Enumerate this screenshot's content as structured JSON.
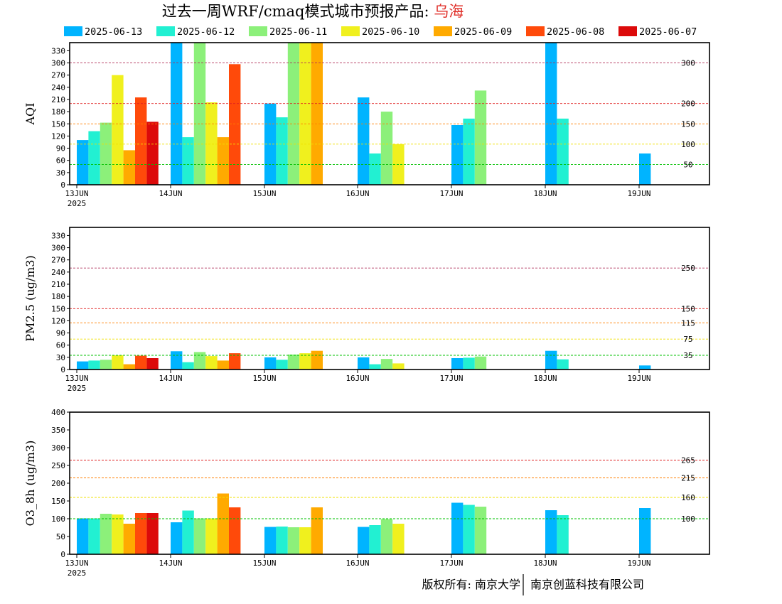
{
  "title": {
    "main": "过去一周WRF/cmaq模式城市预报产品: ",
    "city": "乌海"
  },
  "legend": [
    {
      "label": "2025-06-13",
      "color": "#00b4ff"
    },
    {
      "label": "2025-06-12",
      "color": "#22f0d2"
    },
    {
      "label": "2025-06-11",
      "color": "#8cf07a"
    },
    {
      "label": "2025-06-10",
      "color": "#f0f01e"
    },
    {
      "label": "2025-06-09",
      "color": "#ffaa00"
    },
    {
      "label": "2025-06-08",
      "color": "#ff4a0a"
    },
    {
      "label": "2025-06-07",
      "color": "#dc0a0a"
    }
  ],
  "footer": {
    "left": "版权所有: 南京大学",
    "right": "南京创蓝科技有限公司"
  },
  "chart_data": [
    {
      "type": "bar",
      "ylabel": "AQI",
      "ylim": [
        0,
        350
      ],
      "yticks": [
        0,
        30,
        60,
        90,
        120,
        150,
        180,
        210,
        240,
        270,
        300,
        330
      ],
      "categories": [
        "13JUN",
        "14JUN",
        "15JUN",
        "16JUN",
        "17JUN",
        "18JUN",
        "19JUN"
      ],
      "year_label": "2025",
      "thresholds": [
        {
          "value": 300,
          "label": "300",
          "color": "#b0305a"
        },
        {
          "value": 200,
          "label": "200",
          "color": "#e02020"
        },
        {
          "value": 150,
          "label": "150",
          "color": "#ff8000"
        },
        {
          "value": 100,
          "label": "100",
          "color": "#f0e000"
        },
        {
          "value": 50,
          "label": "50",
          "color": "#00c000"
        }
      ],
      "series": [
        {
          "name": "2025-06-13",
          "values": [
            110,
            350,
            200,
            215,
            147,
            350,
            77
          ]
        },
        {
          "name": "2025-06-12",
          "values": [
            132,
            117,
            166,
            77,
            163,
            163,
            null
          ]
        },
        {
          "name": "2025-06-11",
          "values": [
            153,
            350,
            350,
            180,
            232,
            null,
            null
          ]
        },
        {
          "name": "2025-06-10",
          "values": [
            270,
            203,
            350,
            100,
            null,
            null,
            null
          ]
        },
        {
          "name": "2025-06-09",
          "values": [
            85,
            117,
            350,
            null,
            null,
            null,
            null
          ]
        },
        {
          "name": "2025-06-08",
          "values": [
            215,
            297,
            null,
            null,
            null,
            null,
            null
          ]
        },
        {
          "name": "2025-06-07",
          "values": [
            155,
            null,
            null,
            null,
            null,
            null,
            null
          ]
        }
      ]
    },
    {
      "type": "bar",
      "ylabel": "PM2.5 (ug/m3)",
      "ylim": [
        0,
        350
      ],
      "yticks": [
        0,
        30,
        60,
        90,
        120,
        150,
        180,
        210,
        240,
        270,
        300,
        330
      ],
      "categories": [
        "13JUN",
        "14JUN",
        "15JUN",
        "16JUN",
        "17JUN",
        "18JUN",
        "19JUN"
      ],
      "year_label": "2025",
      "thresholds": [
        {
          "value": 250,
          "label": "250",
          "color": "#b0305a"
        },
        {
          "value": 150,
          "label": "150",
          "color": "#e02020"
        },
        {
          "value": 115,
          "label": "115",
          "color": "#ff8000"
        },
        {
          "value": 75,
          "label": "75",
          "color": "#f0e000"
        },
        {
          "value": 35,
          "label": "35",
          "color": "#00c000"
        }
      ],
      "series": [
        {
          "name": "2025-06-13",
          "values": [
            20,
            45,
            30,
            30,
            28,
            46,
            10
          ]
        },
        {
          "name": "2025-06-12",
          "values": [
            22,
            18,
            24,
            13,
            29,
            25,
            null
          ]
        },
        {
          "name": "2025-06-11",
          "values": [
            24,
            43,
            37,
            26,
            32,
            null,
            null
          ]
        },
        {
          "name": "2025-06-10",
          "values": [
            35,
            33,
            40,
            15,
            null,
            null,
            null
          ]
        },
        {
          "name": "2025-06-09",
          "values": [
            13,
            22,
            46,
            null,
            null,
            null,
            null
          ]
        },
        {
          "name": "2025-06-08",
          "values": [
            34,
            40,
            null,
            null,
            null,
            null,
            null
          ]
        },
        {
          "name": "2025-06-07",
          "values": [
            28,
            null,
            null,
            null,
            null,
            null,
            null
          ]
        }
      ]
    },
    {
      "type": "bar",
      "ylabel": "O3_8h (ug/m3)",
      "ylim": [
        0,
        400
      ],
      "yticks": [
        0,
        50,
        100,
        150,
        200,
        250,
        300,
        350,
        400
      ],
      "categories": [
        "13JUN",
        "14JUN",
        "15JUN",
        "16JUN",
        "17JUN",
        "18JUN",
        "19JUN"
      ],
      "year_label": "2025",
      "thresholds": [
        {
          "value": 265,
          "label": "265",
          "color": "#e02020"
        },
        {
          "value": 215,
          "label": "215",
          "color": "#ff8000"
        },
        {
          "value": 160,
          "label": "160",
          "color": "#f0e000"
        },
        {
          "value": 100,
          "label": "100",
          "color": "#00c000"
        }
      ],
      "series": [
        {
          "name": "2025-06-13",
          "values": [
            101,
            90,
            77,
            77,
            145,
            124,
            130
          ]
        },
        {
          "name": "2025-06-12",
          "values": [
            101,
            123,
            78,
            82,
            139,
            110,
            null
          ]
        },
        {
          "name": "2025-06-11",
          "values": [
            114,
            101,
            76,
            99,
            134,
            null,
            null
          ]
        },
        {
          "name": "2025-06-10",
          "values": [
            112,
            101,
            76,
            86,
            null,
            null,
            null
          ]
        },
        {
          "name": "2025-06-09",
          "values": [
            86,
            171,
            132,
            null,
            null,
            null,
            null
          ]
        },
        {
          "name": "2025-06-08",
          "values": [
            116,
            132,
            null,
            null,
            null,
            null,
            null
          ]
        },
        {
          "name": "2025-06-07",
          "values": [
            116,
            null,
            null,
            null,
            null,
            null,
            null
          ]
        }
      ]
    }
  ]
}
